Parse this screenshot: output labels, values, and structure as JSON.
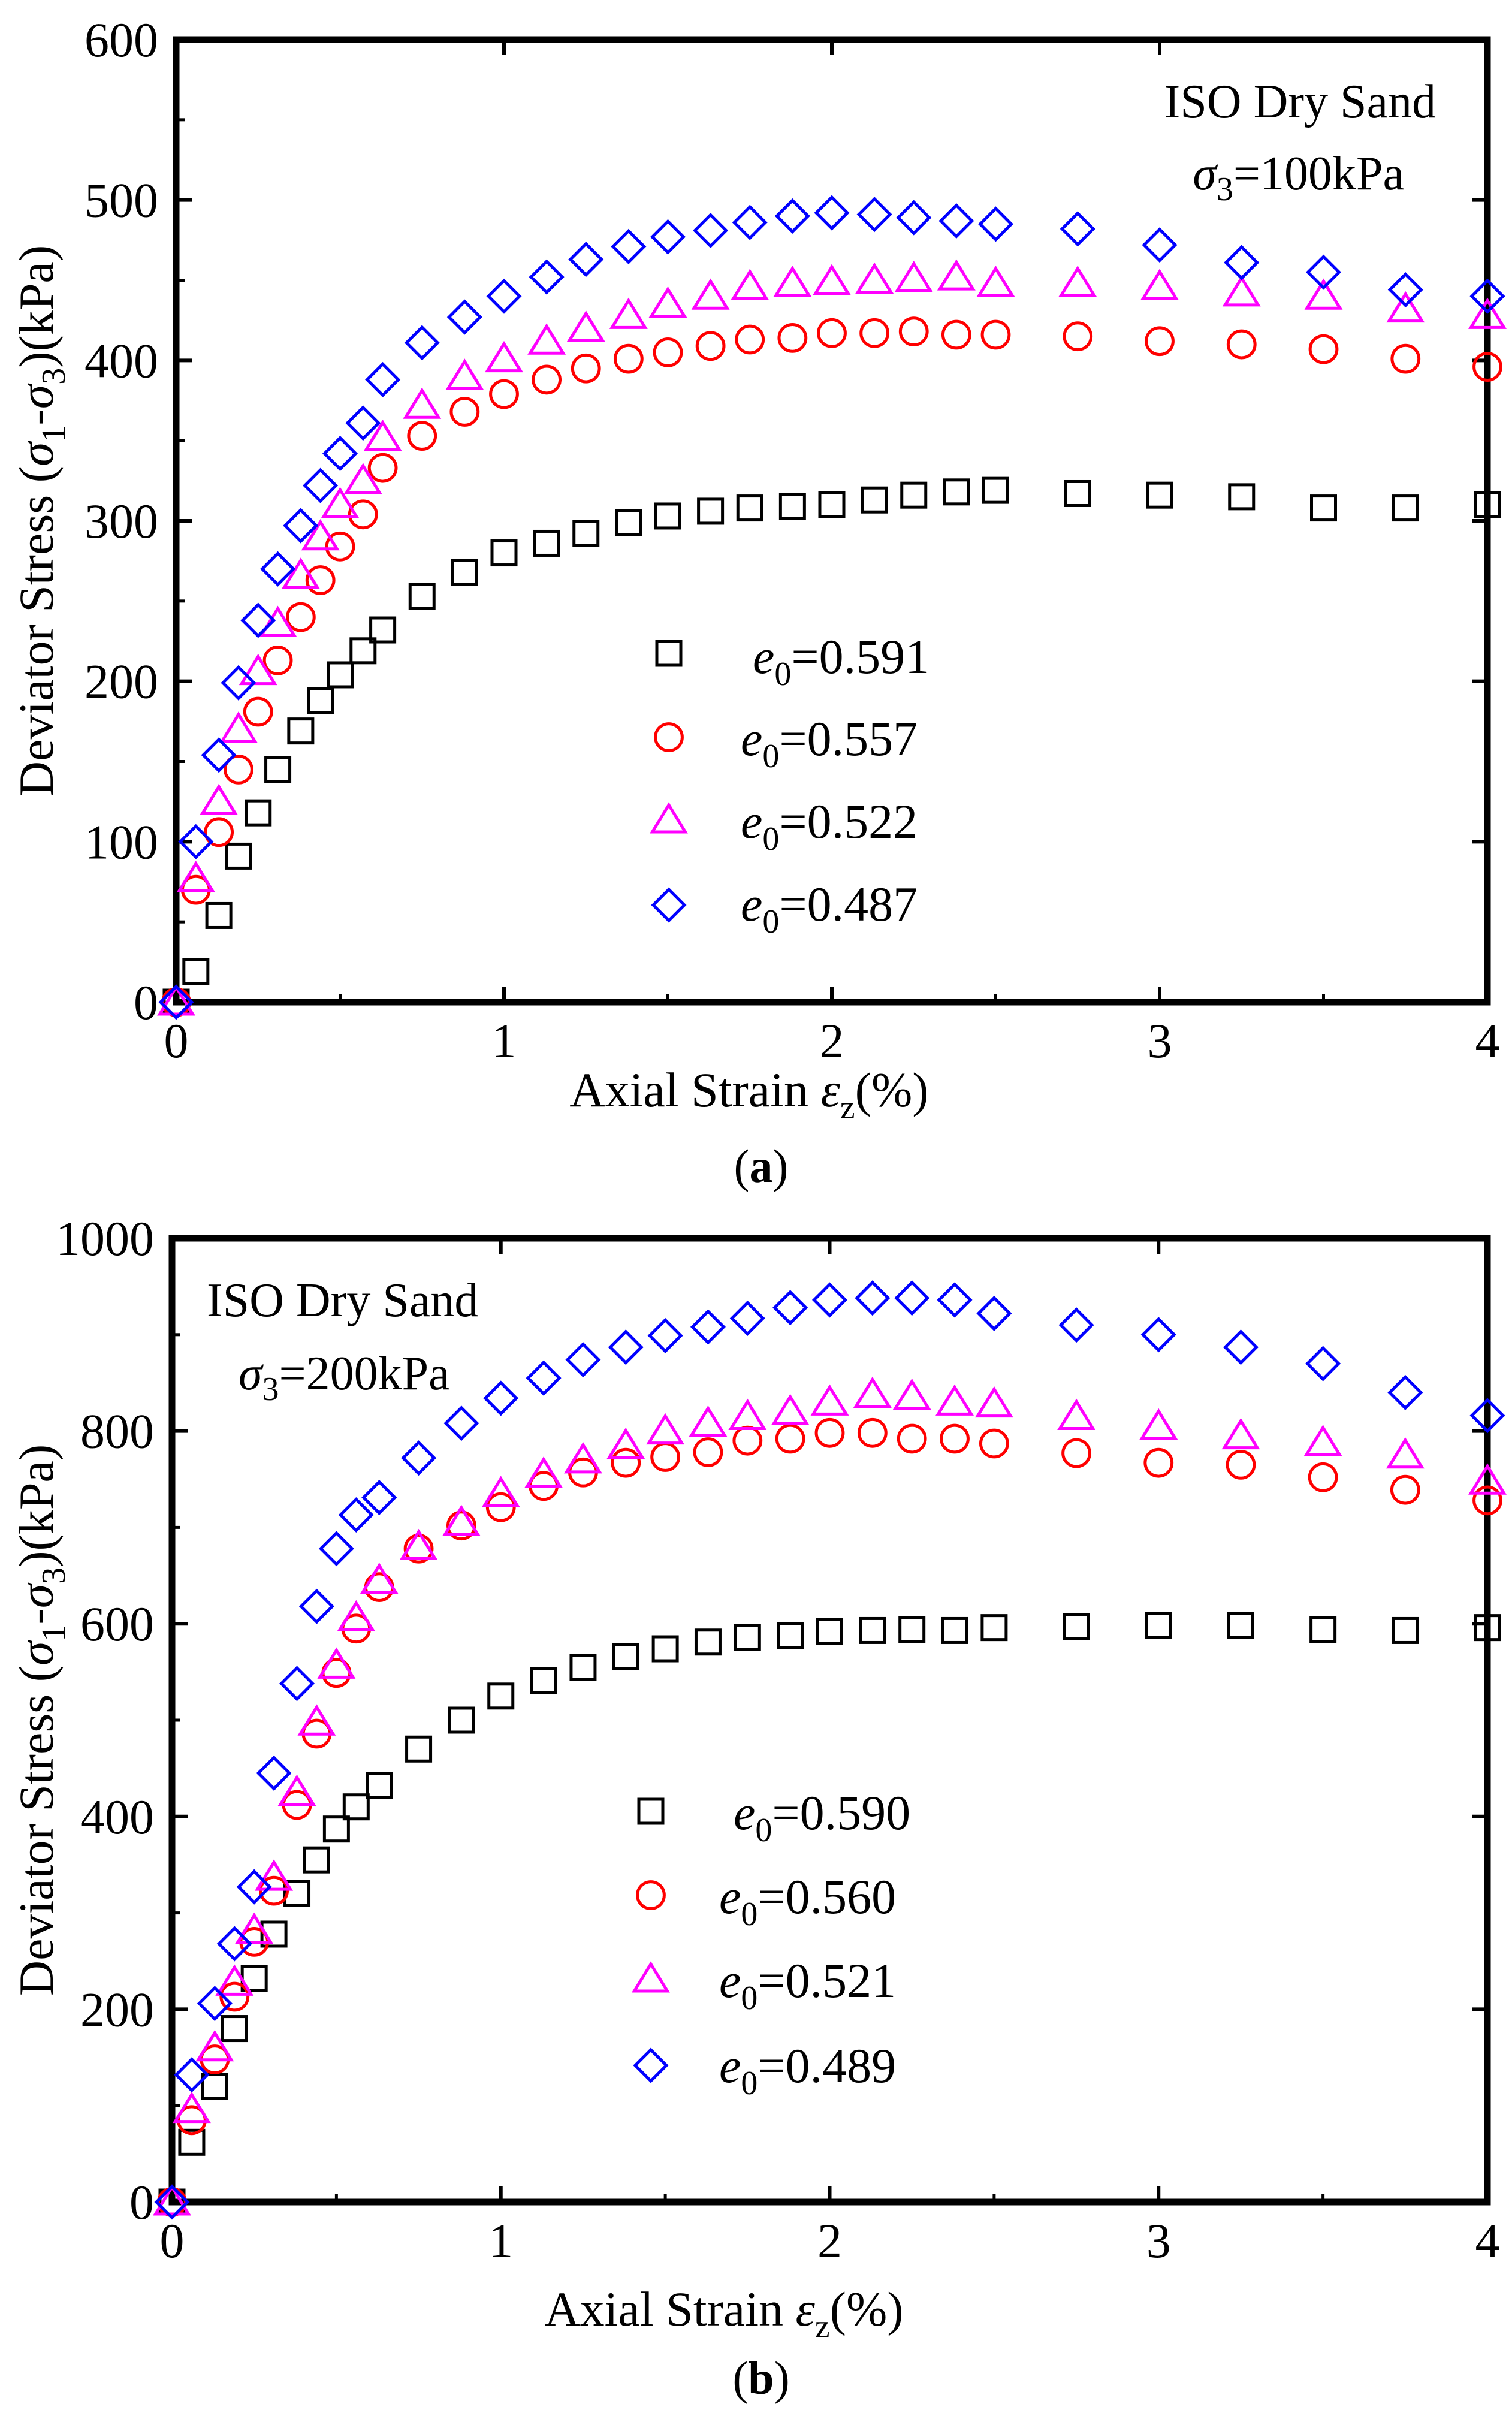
{
  "caption_a": {
    "open": "(",
    "letter": "a",
    "close": ")"
  },
  "caption_b": {
    "open": "(",
    "letter": "b",
    "close": ")"
  },
  "chart_data": [
    {
      "type": "scatter",
      "panel": "a",
      "title": "ISO Dry Sand",
      "subtitle": {
        "sym": "σ",
        "sub": "3",
        "rest": "=100kPa"
      },
      "xlabel": {
        "pre": "Axial Strain ",
        "sym": "ε",
        "sub": "z",
        "post": "(%)"
      },
      "ylabel": {
        "pre": "Deviator Stress (",
        "s1": "σ",
        "s1sub": "1",
        "dash": "-",
        "s3": "σ",
        "s3sub": "3",
        "post": ")(kPa)"
      },
      "xlim": [
        0,
        4
      ],
      "ylim": [
        0,
        600
      ],
      "xticks": [
        0,
        1,
        2,
        3,
        4
      ],
      "yticks": [
        0,
        100,
        200,
        300,
        400,
        500,
        600
      ],
      "legend_position": "lower-center",
      "series": [
        {
          "sym": "e",
          "sub": "0",
          "val": "=0.591",
          "marker": "square",
          "color": "#000000",
          "x": [
            0,
            0.06,
            0.13,
            0.19,
            0.25,
            0.31,
            0.38,
            0.44,
            0.5,
            0.57,
            0.63,
            0.75,
            0.88,
            1.0,
            1.13,
            1.25,
            1.38,
            1.5,
            1.63,
            1.75,
            1.88,
            2.0,
            2.13,
            2.25,
            2.38,
            2.5,
            2.75,
            3.0,
            3.25,
            3.5,
            3.75,
            4.0
          ],
          "y": [
            0,
            19,
            54,
            91,
            118,
            145,
            169,
            188,
            204,
            219,
            232,
            253,
            268,
            280,
            286,
            292,
            299,
            303,
            306,
            308,
            309,
            310,
            313,
            316,
            318,
            319,
            317,
            316,
            315,
            308,
            308,
            310
          ]
        },
        {
          "sym": "e",
          "sub": "0",
          "val": "=0.557",
          "marker": "circle",
          "color": "#ff0000",
          "x": [
            0,
            0.06,
            0.13,
            0.19,
            0.25,
            0.31,
            0.38,
            0.44,
            0.5,
            0.57,
            0.63,
            0.75,
            0.88,
            1.0,
            1.13,
            1.25,
            1.38,
            1.5,
            1.63,
            1.75,
            1.88,
            2.0,
            2.13,
            2.25,
            2.38,
            2.5,
            2.75,
            3.0,
            3.25,
            3.5,
            3.75,
            4.0
          ],
          "y": [
            0,
            70,
            106,
            145,
            181,
            213,
            240,
            263,
            284,
            304,
            333,
            353,
            368,
            379,
            388,
            395,
            401,
            405,
            409,
            413,
            414,
            417,
            417,
            418,
            416,
            416,
            415,
            412,
            410,
            407,
            401,
            396
          ]
        },
        {
          "sym": "e",
          "sub": "0",
          "val": "=0.522",
          "marker": "triangle",
          "color": "#ff00ff",
          "x": [
            0,
            0.06,
            0.13,
            0.19,
            0.25,
            0.31,
            0.38,
            0.44,
            0.5,
            0.57,
            0.63,
            0.75,
            0.88,
            1.0,
            1.13,
            1.25,
            1.38,
            1.5,
            1.63,
            1.75,
            1.88,
            2.0,
            2.13,
            2.25,
            2.38,
            2.5,
            2.75,
            3.0,
            3.25,
            3.5,
            3.75,
            4.0
          ],
          "y": [
            0,
            77,
            125,
            170,
            206,
            236,
            266,
            290,
            310,
            325,
            352,
            372,
            390,
            401,
            412,
            420,
            428,
            435,
            440,
            446,
            448,
            449,
            450,
            451,
            452,
            448,
            448,
            446,
            442,
            440,
            432,
            428
          ]
        },
        {
          "sym": "e",
          "sub": "0",
          "val": "=0.487",
          "marker": "diamond",
          "color": "#0000ff",
          "x": [
            0,
            0.06,
            0.13,
            0.19,
            0.25,
            0.31,
            0.38,
            0.44,
            0.5,
            0.57,
            0.63,
            0.75,
            0.88,
            1.0,
            1.13,
            1.25,
            1.38,
            1.5,
            1.63,
            1.75,
            1.88,
            2.0,
            2.13,
            2.25,
            2.38,
            2.5,
            2.75,
            3.0,
            3.25,
            3.5,
            3.75,
            4.0
          ],
          "y": [
            0,
            100,
            154,
            199,
            238,
            270,
            297,
            322,
            342,
            361,
            388,
            411,
            427,
            440,
            452,
            463,
            471,
            477,
            481,
            486,
            490,
            492,
            491,
            489,
            487,
            485,
            482,
            472,
            461,
            455,
            444,
            440
          ]
        }
      ]
    },
    {
      "type": "scatter",
      "panel": "b",
      "title": "ISO Dry Sand",
      "subtitle": {
        "sym": "σ",
        "sub": "3",
        "rest": "=200kPa"
      },
      "xlabel": {
        "pre": "Axial Strain ",
        "sym": "ε",
        "sub": "z",
        "post": "(%)"
      },
      "ylabel": {
        "pre": "Deviator Stress (",
        "s1": "σ",
        "s1sub": "1",
        "dash": "-",
        "s3": "σ",
        "s3sub": "3",
        "post": ")(kPa)"
      },
      "xlim": [
        0,
        4
      ],
      "ylim": [
        0,
        1000
      ],
      "xticks": [
        0,
        1,
        2,
        3,
        4
      ],
      "yticks": [
        0,
        200,
        400,
        600,
        800,
        1000
      ],
      "legend_position": "lower-center",
      "series": [
        {
          "sym": "e",
          "sub": "0",
          "val": "=0.590",
          "marker": "square",
          "color": "#000000",
          "x": [
            0,
            0.06,
            0.13,
            0.19,
            0.25,
            0.31,
            0.38,
            0.44,
            0.5,
            0.56,
            0.63,
            0.75,
            0.88,
            1.0,
            1.13,
            1.25,
            1.38,
            1.5,
            1.63,
            1.75,
            1.88,
            2.0,
            2.13,
            2.25,
            2.38,
            2.5,
            2.75,
            3.0,
            3.25,
            3.5,
            3.75,
            4.0
          ],
          "y": [
            0,
            62,
            120,
            180,
            232,
            278,
            320,
            355,
            387,
            410,
            432,
            470,
            500,
            525,
            541,
            555,
            566,
            574,
            581,
            586,
            588,
            592,
            593,
            594,
            593,
            596,
            597,
            598,
            598,
            594,
            593,
            596
          ]
        },
        {
          "sym": "e",
          "sub": "0",
          "val": "=0.560",
          "marker": "circle",
          "color": "#ff0000",
          "x": [
            0,
            0.06,
            0.13,
            0.19,
            0.25,
            0.31,
            0.38,
            0.44,
            0.5,
            0.56,
            0.63,
            0.75,
            0.88,
            1.0,
            1.13,
            1.25,
            1.38,
            1.5,
            1.63,
            1.75,
            1.88,
            2.0,
            2.13,
            2.25,
            2.38,
            2.5,
            2.75,
            3.0,
            3.25,
            3.5,
            3.75,
            4.0
          ],
          "y": [
            0,
            85,
            148,
            213,
            270,
            323,
            412,
            486,
            549,
            595,
            638,
            678,
            702,
            721,
            743,
            757,
            767,
            773,
            778,
            790,
            792,
            798,
            798,
            792,
            792,
            787,
            777,
            767,
            765,
            752,
            739,
            728
          ]
        },
        {
          "sym": "e",
          "sub": "0",
          "val": "=0.521",
          "marker": "triangle",
          "color": "#ff00ff",
          "x": [
            0,
            0.06,
            0.13,
            0.19,
            0.25,
            0.31,
            0.38,
            0.44,
            0.5,
            0.56,
            0.63,
            0.75,
            0.88,
            1.0,
            1.13,
            1.25,
            1.38,
            1.5,
            1.63,
            1.75,
            1.88,
            2.0,
            2.13,
            2.25,
            2.38,
            2.5,
            2.75,
            3.0,
            3.25,
            3.5,
            3.75,
            4.0
          ],
          "y": [
            0,
            96,
            160,
            228,
            282,
            337,
            425,
            498,
            557,
            606,
            645,
            680,
            705,
            735,
            755,
            770,
            785,
            800,
            808,
            815,
            820,
            830,
            838,
            836,
            830,
            828,
            815,
            805,
            795,
            788,
            775,
            748
          ]
        },
        {
          "sym": "e",
          "sub": "0",
          "val": "=0.489",
          "marker": "diamond",
          "color": "#0000ff",
          "x": [
            0,
            0.06,
            0.13,
            0.19,
            0.25,
            0.31,
            0.38,
            0.44,
            0.5,
            0.56,
            0.63,
            0.75,
            0.88,
            1.0,
            1.13,
            1.25,
            1.38,
            1.5,
            1.63,
            1.75,
            1.88,
            2.0,
            2.13,
            2.25,
            2.38,
            2.5,
            2.75,
            3.0,
            3.25,
            3.5,
            3.75,
            4.0
          ],
          "y": [
            0,
            132,
            206,
            268,
            327,
            445,
            538,
            618,
            678,
            713,
            731,
            772,
            808,
            834,
            855,
            874,
            887,
            899,
            908,
            917,
            928,
            936,
            938,
            938,
            936,
            922,
            910,
            900,
            887,
            870,
            840,
            816
          ]
        }
      ]
    }
  ]
}
